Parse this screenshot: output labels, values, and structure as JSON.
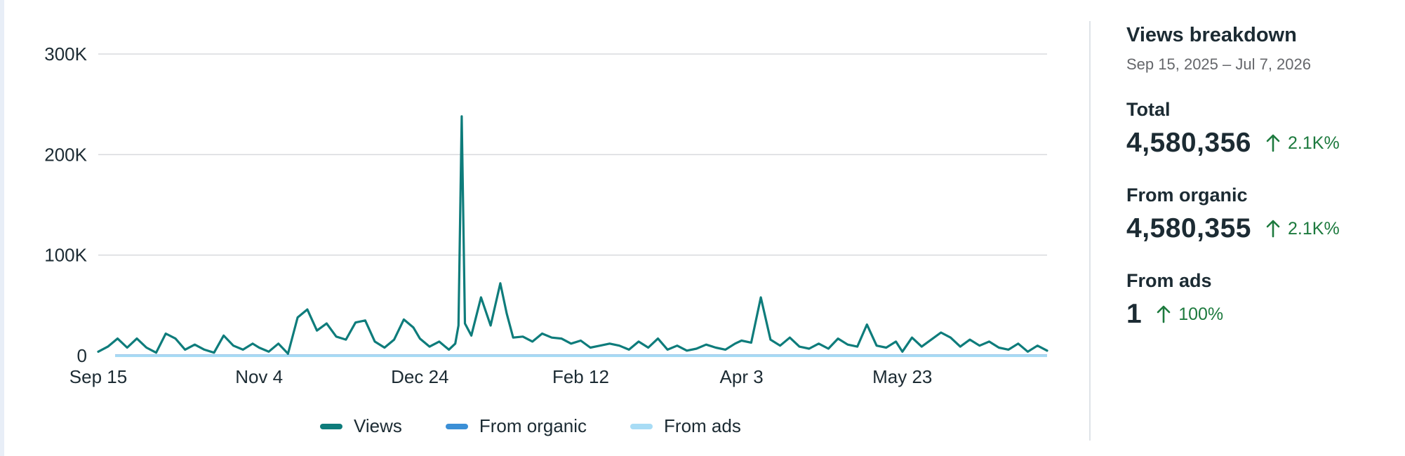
{
  "chart_data": {
    "type": "line",
    "title": "",
    "xlabel": "",
    "ylabel": "",
    "x_tick_labels": [
      "Sep 15",
      "Nov 4",
      "Dec 24",
      "Feb 12",
      "Apr 3",
      "May 23"
    ],
    "y_tick_labels": [
      "300K",
      "200K",
      "100K",
      "0"
    ],
    "y_ticks": [
      300000,
      200000,
      100000,
      0
    ],
    "ylim": [
      0,
      300000
    ],
    "x_range": [
      "2025-09-15",
      "2026-07-07"
    ],
    "grid": true,
    "legend_position": "bottom",
    "x_label_dates": [
      "2025-09-15",
      "2025-11-04",
      "2025-12-24",
      "2026-02-12",
      "2026-04-03",
      "2026-05-23"
    ],
    "series": [
      {
        "name": "Views",
        "color": "#0e7c7b",
        "x": [
          "2025-09-15",
          "2025-09-18",
          "2025-09-21",
          "2025-09-24",
          "2025-09-27",
          "2025-09-30",
          "2025-10-03",
          "2025-10-06",
          "2025-10-09",
          "2025-10-12",
          "2025-10-15",
          "2025-10-18",
          "2025-10-21",
          "2025-10-24",
          "2025-10-27",
          "2025-10-30",
          "2025-11-02",
          "2025-11-04",
          "2025-11-07",
          "2025-11-10",
          "2025-11-13",
          "2025-11-16",
          "2025-11-19",
          "2025-11-22",
          "2025-11-25",
          "2025-11-28",
          "2025-12-01",
          "2025-12-04",
          "2025-12-07",
          "2025-12-10",
          "2025-12-13",
          "2025-12-16",
          "2025-12-19",
          "2025-12-22",
          "2025-12-24",
          "2025-12-27",
          "2025-12-30",
          "2026-01-02",
          "2026-01-04",
          "2026-01-05",
          "2026-01-06",
          "2026-01-07",
          "2026-01-09",
          "2026-01-12",
          "2026-01-15",
          "2026-01-18",
          "2026-01-20",
          "2026-01-22",
          "2026-01-25",
          "2026-01-28",
          "2026-01-31",
          "2026-02-03",
          "2026-02-06",
          "2026-02-09",
          "2026-02-12",
          "2026-02-15",
          "2026-02-18",
          "2026-02-21",
          "2026-02-24",
          "2026-02-27",
          "2026-03-02",
          "2026-03-05",
          "2026-03-08",
          "2026-03-11",
          "2026-03-14",
          "2026-03-17",
          "2026-03-20",
          "2026-03-23",
          "2026-03-26",
          "2026-03-29",
          "2026-04-01",
          "2026-04-03",
          "2026-04-06",
          "2026-04-09",
          "2026-04-12",
          "2026-04-15",
          "2026-04-18",
          "2026-04-21",
          "2026-04-24",
          "2026-04-27",
          "2026-04-30",
          "2026-05-03",
          "2026-05-06",
          "2026-05-09",
          "2026-05-12",
          "2026-05-15",
          "2026-05-18",
          "2026-05-21",
          "2026-05-23",
          "2026-05-26",
          "2026-05-29",
          "2026-06-01",
          "2026-06-04",
          "2026-06-07",
          "2026-06-10",
          "2026-06-13",
          "2026-06-16",
          "2026-06-19",
          "2026-06-22",
          "2026-06-25",
          "2026-06-28",
          "2026-07-01",
          "2026-07-04",
          "2026-07-07"
        ],
        "values": [
          4000,
          9000,
          17000,
          8000,
          17000,
          8000,
          3000,
          22000,
          17000,
          6000,
          11000,
          6000,
          3000,
          20000,
          10000,
          6000,
          12000,
          8000,
          4000,
          12000,
          2000,
          38000,
          46000,
          25000,
          32000,
          19000,
          16000,
          33000,
          35000,
          14000,
          8000,
          16000,
          36000,
          28000,
          17000,
          9000,
          14000,
          6000,
          12000,
          30000,
          238000,
          32000,
          20000,
          58000,
          30000,
          72000,
          42000,
          18000,
          19000,
          14000,
          22000,
          18000,
          17000,
          12000,
          15000,
          8000,
          10000,
          12000,
          10000,
          6000,
          14000,
          8000,
          17000,
          6000,
          10000,
          5000,
          7000,
          11000,
          8000,
          6000,
          12000,
          15000,
          13000,
          58000,
          16000,
          10000,
          18000,
          9000,
          7000,
          12000,
          7000,
          17000,
          11000,
          9000,
          31000,
          10000,
          8000,
          14000,
          4000,
          18000,
          9000,
          16000,
          23000,
          18000,
          9000,
          16000,
          10000,
          14000,
          8000,
          6000,
          12000,
          4000,
          10000,
          5000
        ]
      },
      {
        "name": "From organic",
        "color": "#3b8fd6"
      },
      {
        "name": "From ads",
        "color": "#a8dcf5"
      }
    ]
  },
  "panel": {
    "title": "Views breakdown",
    "date_range": "Sep 15, 2025 – Jul 7, 2026",
    "metrics": [
      {
        "label": "Total",
        "value": "4,580,356",
        "change": "2.1K%"
      },
      {
        "label": "From organic",
        "value": "4,580,355",
        "change": "2.1K%"
      },
      {
        "label": "From ads",
        "value": "1",
        "change": "100%"
      }
    ]
  },
  "colors": {
    "positive": "#1d7a3e",
    "grid": "#d8dadd",
    "text": "#1c2b33"
  }
}
